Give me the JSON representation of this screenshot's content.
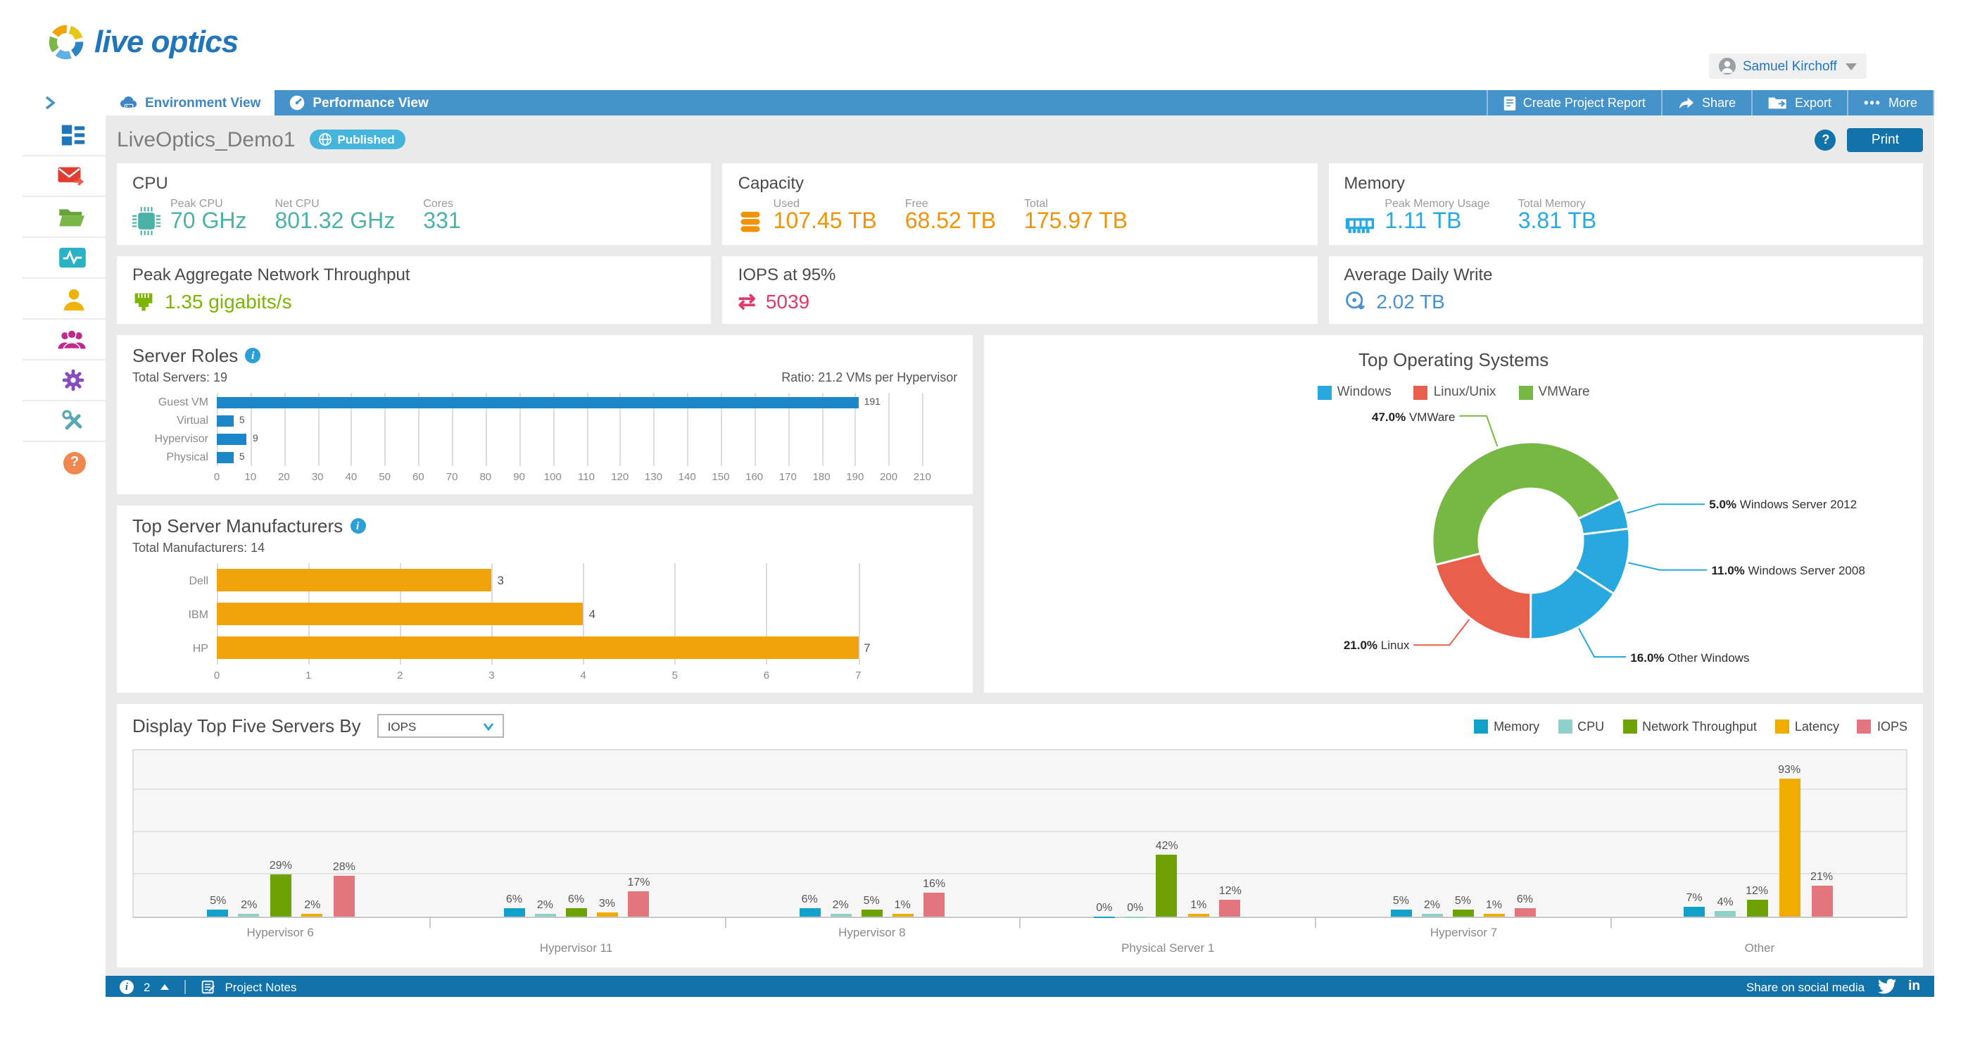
{
  "header": {
    "logo": "live optics",
    "user_name": "Samuel Kirchoff"
  },
  "nav": {
    "tabs": [
      {
        "label": "Environment View"
      },
      {
        "label": "Performance View"
      }
    ],
    "actions": [
      {
        "label": "Create Project Report"
      },
      {
        "label": "Share"
      },
      {
        "label": "Export"
      },
      {
        "label": "More"
      }
    ]
  },
  "page": {
    "title": "LiveOptics_Demo1",
    "badge": "Published",
    "help": "?",
    "print": "Print"
  },
  "summary_cards": {
    "cpu": {
      "title": "CPU",
      "accent": "#4cb2a8",
      "metrics": [
        {
          "label": "Peak CPU",
          "value": "70 GHz"
        },
        {
          "label": "Net CPU",
          "value": "801.32 GHz"
        },
        {
          "label": "Cores",
          "value": "331"
        }
      ]
    },
    "capacity": {
      "title": "Capacity",
      "accent": "#ef9309",
      "metrics": [
        {
          "label": "Used",
          "value": "107.45 TB"
        },
        {
          "label": "Free",
          "value": "68.52 TB"
        },
        {
          "label": "Total",
          "value": "175.97 TB"
        }
      ]
    },
    "memory": {
      "title": "Memory",
      "accent": "#29a9e1",
      "metrics": [
        {
          "label": "Peak Memory Usage",
          "value": "1.11 TB"
        },
        {
          "label": "Total Memory",
          "value": "3.81 TB"
        }
      ]
    },
    "network": {
      "title": "Peak Aggregate Network Throughput",
      "accent": "#7cb500",
      "value": "1.35 gigabits/s"
    },
    "iops": {
      "title": "IOPS at 95%",
      "accent": "#dd3a6a",
      "value": "5039"
    },
    "daily_write": {
      "title": "Average Daily Write",
      "accent": "#4a90d2",
      "value": "2.02 TB"
    }
  },
  "panels": {
    "server_roles": {
      "title": "Server Roles",
      "subtitle_left": "Total Servers: 19",
      "subtitle_right": "Ratio: 21.2 VMs per Hypervisor"
    },
    "manufacturers": {
      "title": "Top Server Manufacturers",
      "subtitle_left": "Total Manufacturers: 14"
    },
    "top_os": {
      "title": "Top Operating Systems"
    },
    "top_servers": {
      "title": "Display Top Five Servers By",
      "selected_option": "IOPS"
    }
  },
  "chart_data": [
    {
      "id": "server_roles",
      "type": "bar",
      "orientation": "horizontal",
      "title": "Server Roles",
      "categories": [
        "Guest VM",
        "Virtual",
        "Hypervisor",
        "Physical"
      ],
      "values": [
        191,
        5,
        9,
        5
      ],
      "color": "#1b87c9",
      "xlim": [
        0,
        210
      ],
      "tick_step": 10,
      "grid": true,
      "annotations": [
        "Total Servers: 19",
        "Ratio: 21.2 VMs per Hypervisor"
      ]
    },
    {
      "id": "top_server_manufacturers",
      "type": "bar",
      "orientation": "horizontal",
      "title": "Top Server Manufacturers",
      "categories": [
        "Dell",
        "IBM",
        "HP"
      ],
      "values": [
        3,
        4,
        7
      ],
      "color": "#f0a30a",
      "xlim": [
        0,
        7.7
      ],
      "ticks": [
        0,
        1,
        2,
        3,
        4,
        5,
        6,
        7
      ],
      "grid": true,
      "annotations": [
        "Total Manufacturers: 14"
      ]
    },
    {
      "id": "top_operating_systems",
      "type": "pie",
      "title": "Top Operating Systems",
      "legend": [
        {
          "label": "Windows",
          "color": "#29a8e0"
        },
        {
          "label": "Linux/Unix",
          "color": "#e8604c"
        },
        {
          "label": "VMWare",
          "color": "#77b844"
        }
      ],
      "segments": [
        {
          "label": "Windows Server 2012",
          "pct": 5.0,
          "color": "#29a8e0"
        },
        {
          "label": "Windows Server 2008",
          "pct": 11.0,
          "color": "#29a8e0"
        },
        {
          "label": "Other Windows",
          "pct": 16.0,
          "color": "#29a8e0"
        },
        {
          "label": "Linux",
          "pct": 21.0,
          "color": "#e8604c"
        },
        {
          "label": "VMWare",
          "pct": 47.0,
          "color": "#77b844"
        }
      ],
      "start_angle_deg": 65,
      "donut": true
    },
    {
      "id": "top_five_servers",
      "type": "bar",
      "orientation": "vertical",
      "title": "Display Top Five Servers By: IOPS",
      "unit": "%",
      "ylim": [
        0,
        100
      ],
      "grid": true,
      "categories": [
        "Hypervisor 6",
        "Hypervisor 11",
        "Hypervisor 8",
        "Physical Server 1",
        "Hypervisor 7",
        "Other"
      ],
      "series": [
        {
          "name": "Memory",
          "color": "#12a2c9",
          "values": [
            5,
            6,
            6,
            0,
            5,
            7
          ]
        },
        {
          "name": "CPU",
          "color": "#8fd0c9",
          "values": [
            2,
            2,
            2,
            0,
            2,
            4
          ]
        },
        {
          "name": "Network Throughput",
          "color": "#6da104",
          "values": [
            29,
            6,
            5,
            42,
            5,
            12
          ]
        },
        {
          "name": "Latency",
          "color": "#f0ac00",
          "values": [
            2,
            3,
            1,
            1,
            1,
            93
          ]
        },
        {
          "name": "IOPS",
          "color": "#e2757e",
          "values": [
            28,
            17,
            16,
            12,
            6,
            21
          ]
        }
      ]
    }
  ],
  "footer": {
    "notifications": "2",
    "project_notes": "Project Notes",
    "share": "Share on social media"
  }
}
